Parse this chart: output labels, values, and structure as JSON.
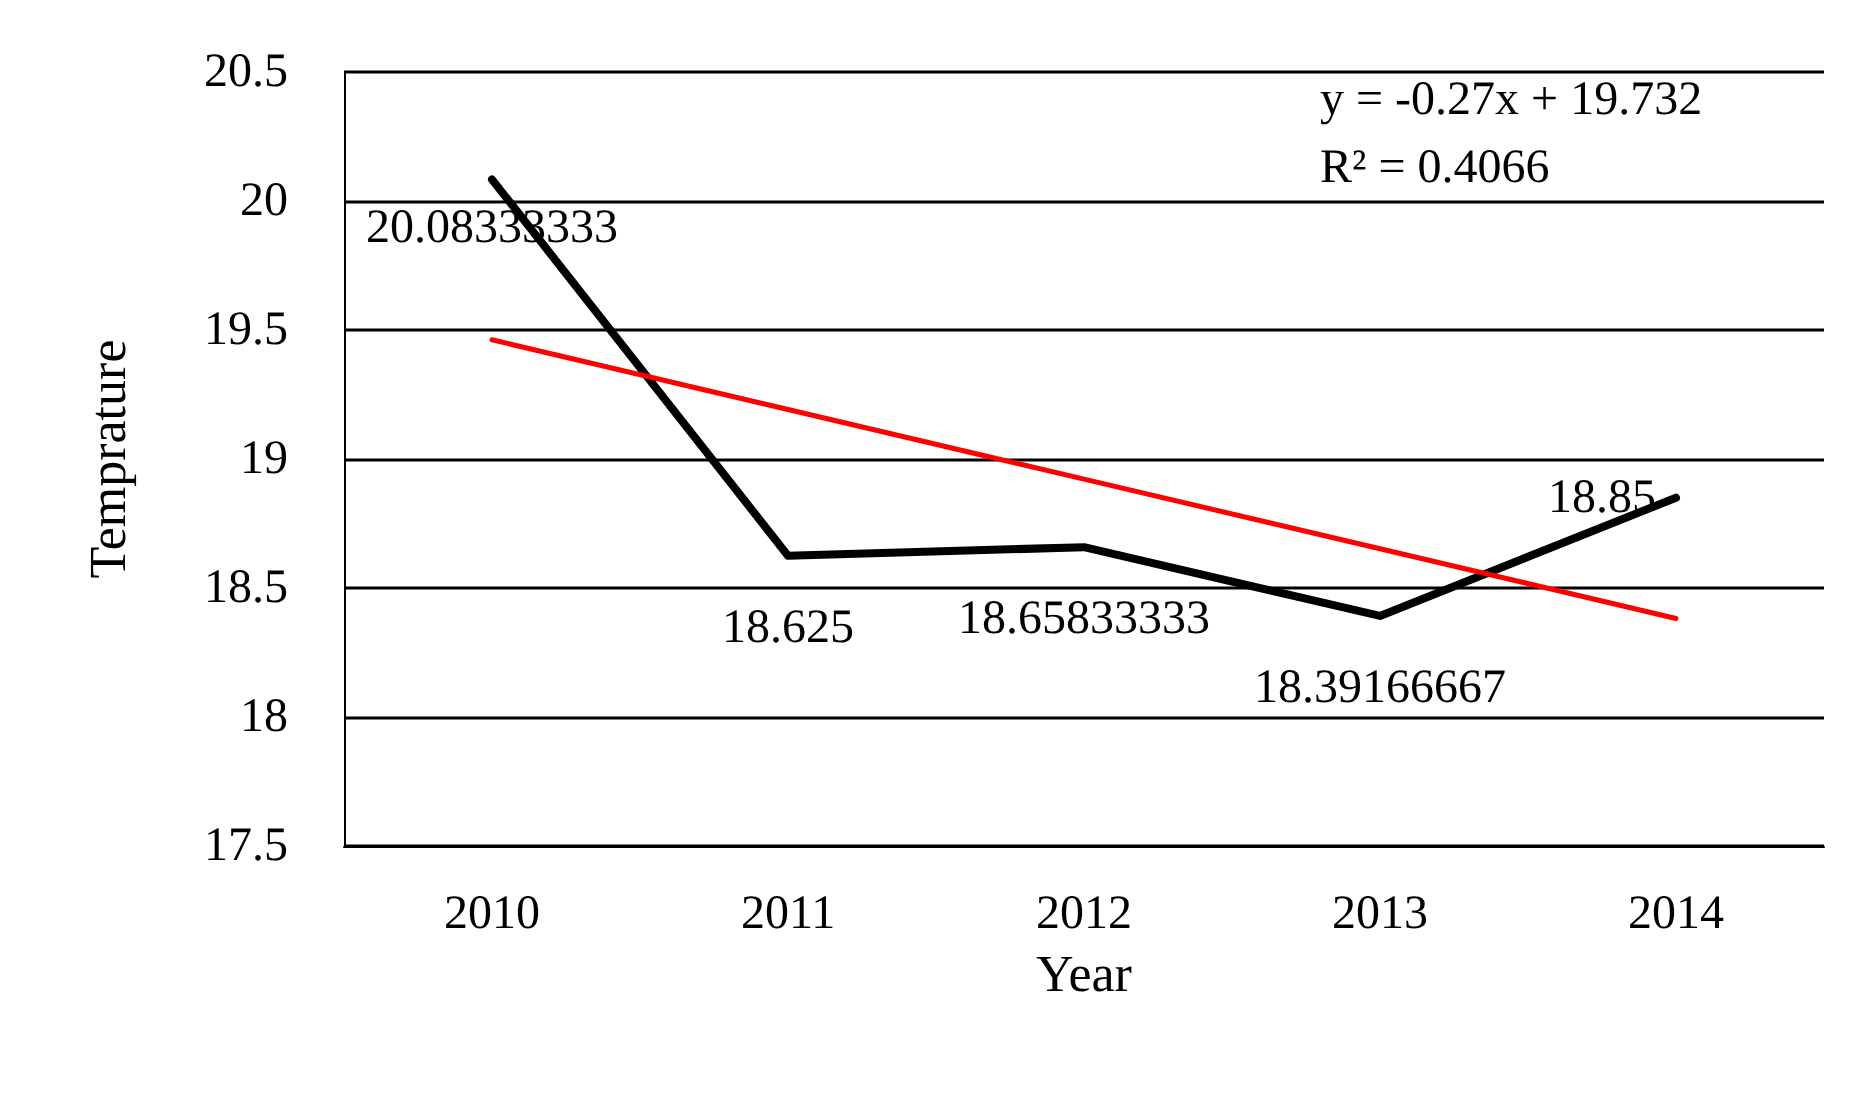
{
  "chart_data": {
    "type": "line",
    "xlabel": "Year",
    "ylabel": "Temprature",
    "categories": [
      "2010",
      "2011",
      "2012",
      "2013",
      "2014"
    ],
    "series": [
      {
        "color": "#000000",
        "values": [
          20.08333333,
          18.625,
          18.65833333,
          18.39166667,
          18.85
        ],
        "value_labels": [
          "20.08333333",
          "18.625",
          "18.65833333",
          "18.39166667",
          "18.85"
        ]
      },
      {
        "type": "line",
        "color": "#ff0000",
        "values": [
          19.462,
          19.192,
          18.922,
          18.652,
          18.382
        ]
      }
    ],
    "ylim": [
      17.5,
      20.5
    ],
    "yticks": [
      17.5,
      18,
      18.5,
      19,
      19.5,
      20,
      20.5
    ],
    "grid": "y",
    "marker": "none",
    "line_style": "solid",
    "annotations": [
      "y = -0.27x + 19.732",
      "R² = 0.4066"
    ]
  }
}
